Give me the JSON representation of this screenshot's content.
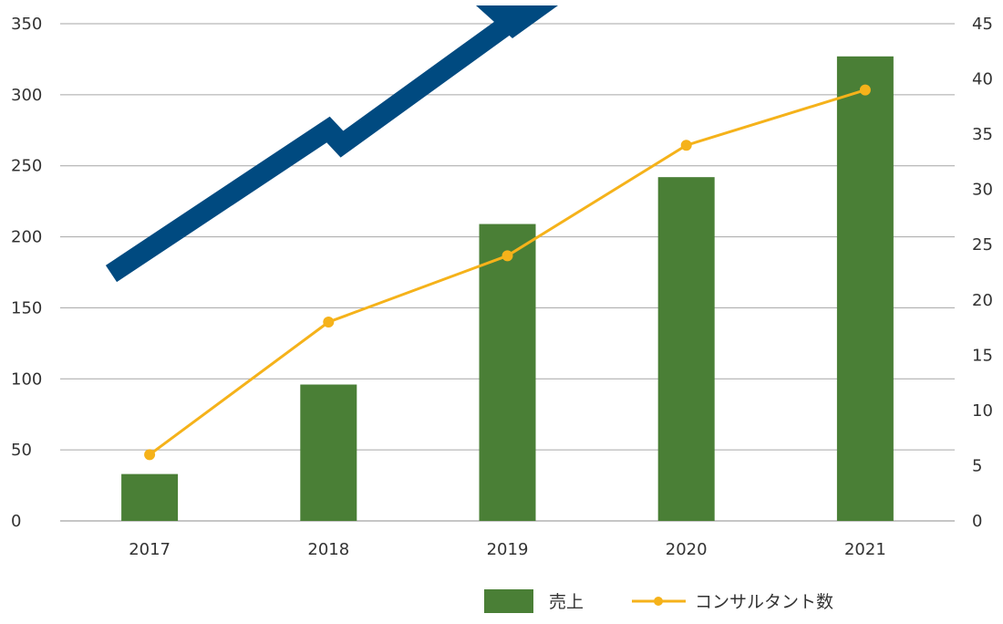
{
  "chart_data": {
    "type": "bar",
    "title": "",
    "xlabel": "",
    "ylabel": "",
    "categories": [
      "2017",
      "2018",
      "2019",
      "2020",
      "2021"
    ],
    "series": [
      {
        "name": "売上",
        "type": "bar",
        "axis": "left",
        "values": [
          33,
          96,
          209,
          242,
          327
        ],
        "color": "#4a7f36"
      },
      {
        "name": "コンサルタント数",
        "type": "line",
        "axis": "right",
        "values": [
          6,
          18,
          24,
          34,
          39
        ],
        "color": "#f5b21a"
      }
    ],
    "y_left": {
      "ylim": [
        0,
        350
      ],
      "ticks": [
        "0",
        "50",
        "100",
        "150",
        "200",
        "250",
        "300",
        "350"
      ]
    },
    "y_right": {
      "ylim": [
        0,
        45
      ],
      "ticks": [
        "0",
        "5",
        "10",
        "15",
        "20",
        "25",
        "30",
        "35",
        "40",
        "45"
      ]
    },
    "grid": true,
    "legend_position": "bottom-right",
    "decoration": {
      "name": "growth-arrow",
      "color": "#004a80"
    }
  }
}
